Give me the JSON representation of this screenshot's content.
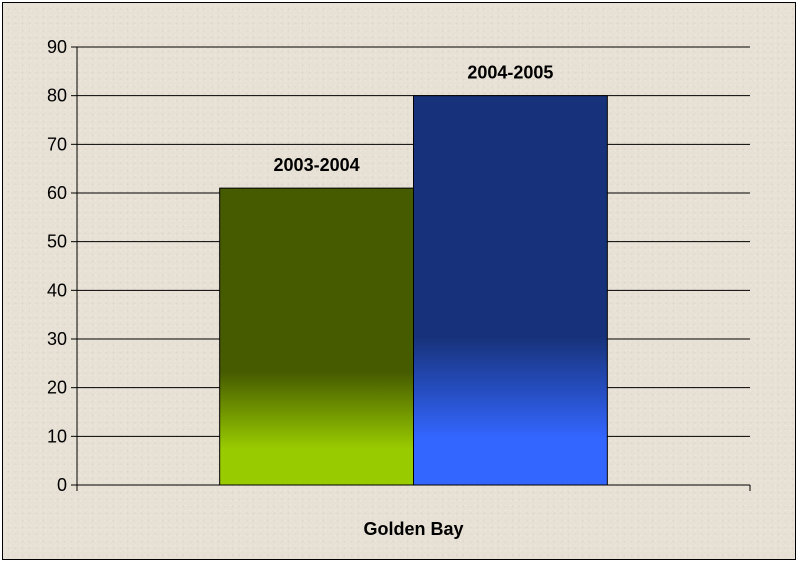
{
  "chart_data": {
    "type": "bar",
    "categories": [
      "Golden Bay"
    ],
    "series": [
      {
        "name": "2003-2004",
        "values": [
          61
        ],
        "data_label": "2003-2004",
        "color_top": "#465b00",
        "color_bottom": "#99cc00"
      },
      {
        "name": "2004-2005",
        "values": [
          80
        ],
        "data_label": "2004-2005",
        "color_top": "#17327a",
        "color_bottom": "#3366ff"
      }
    ],
    "title": "",
    "xlabel": "",
    "ylabel": "",
    "ylim": [
      0,
      90
    ],
    "yticks": [
      0,
      10,
      20,
      30,
      40,
      50,
      60,
      70,
      80,
      90
    ],
    "ytick_labels": [
      "0",
      "10",
      "20",
      "30",
      "40",
      "50",
      "60",
      "70",
      "80",
      "90"
    ],
    "grid": true,
    "legend": "none"
  }
}
